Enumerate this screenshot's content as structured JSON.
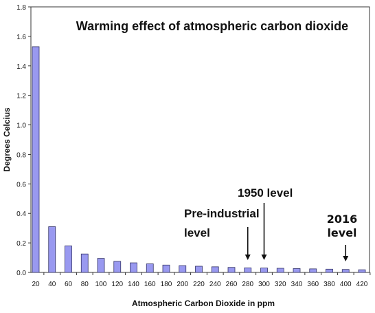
{
  "chart_data": {
    "type": "bar",
    "title": "Warming effect of atmospheric carbon dioxide",
    "xlabel": "Atmospheric Carbon Dioxide in ppm",
    "ylabel": "Degrees Celcius",
    "ylim": [
      0,
      1.8
    ],
    "yticks": [
      "0.0",
      "0.2",
      "0.4",
      "0.6",
      "0.8",
      "1.0",
      "1.2",
      "1.4",
      "1.6",
      "1.8"
    ],
    "categories": [
      "20",
      "40",
      "60",
      "80",
      "100",
      "120",
      "140",
      "160",
      "180",
      "200",
      "220",
      "240",
      "260",
      "280",
      "300",
      "320",
      "340",
      "360",
      "380",
      "400",
      "420"
    ],
    "values": [
      1.53,
      0.31,
      0.18,
      0.125,
      0.095,
      0.075,
      0.065,
      0.058,
      0.05,
      0.046,
      0.042,
      0.038,
      0.034,
      0.031,
      0.03,
      0.028,
      0.026,
      0.024,
      0.022,
      0.02,
      0.018
    ],
    "bar_color": "#9999f0",
    "bar_stroke": "#333366",
    "grid": false,
    "annotations": [
      {
        "lines": [
          "1950 level"
        ],
        "arrow_x": "300",
        "style": "normal"
      },
      {
        "lines": [
          "Pre-industrial",
          "level"
        ],
        "arrow_x": "280",
        "style": "normal"
      },
      {
        "lines": [
          "2016",
          "level"
        ],
        "arrow_x": "400",
        "style": "bold-alt"
      }
    ]
  }
}
